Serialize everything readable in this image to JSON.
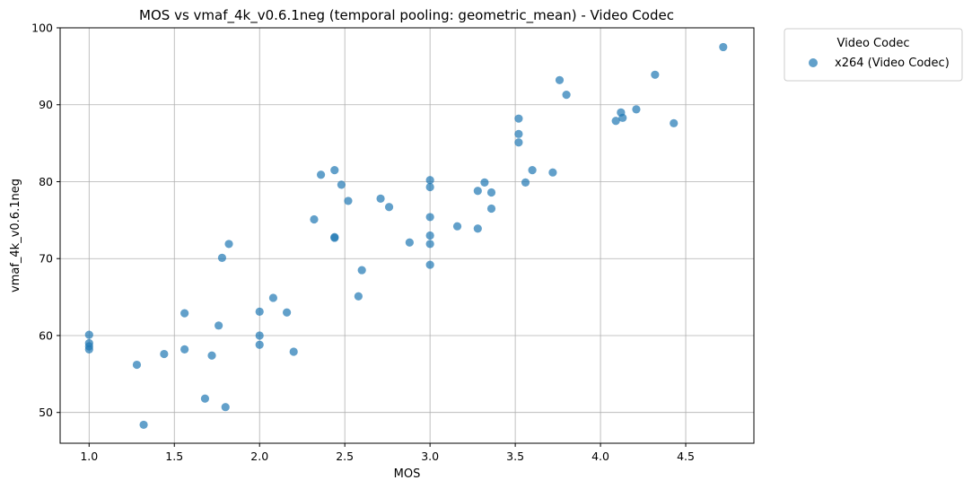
{
  "chart_data": {
    "type": "scatter",
    "title": "MOS vs vmaf_4k_v0.6.1neg (temporal pooling: geometric_mean) - Video Codec",
    "xlabel": "MOS",
    "ylabel": "vmaf_4k_v0.6.1neg",
    "xlim": [
      0.83,
      4.9
    ],
    "ylim": [
      46,
      100
    ],
    "xticks": [
      "1.0",
      "1.5",
      "2.0",
      "2.5",
      "3.0",
      "3.5",
      "4.0",
      "4.5"
    ],
    "yticks": [
      "50",
      "60",
      "70",
      "80",
      "90",
      "100"
    ],
    "grid": true,
    "legend": {
      "title": "Video Codec",
      "placement": "outside-top-right"
    },
    "series": [
      {
        "name": "x264 (Video Codec)",
        "color": "#1f77b4",
        "points": [
          [
            1.0,
            60.1
          ],
          [
            1.0,
            59.0
          ],
          [
            1.0,
            58.6
          ],
          [
            1.0,
            58.2
          ],
          [
            1.28,
            56.2
          ],
          [
            1.32,
            48.4
          ],
          [
            1.44,
            57.6
          ],
          [
            1.56,
            62.9
          ],
          [
            1.56,
            58.2
          ],
          [
            1.68,
            51.8
          ],
          [
            1.72,
            57.4
          ],
          [
            1.76,
            61.3
          ],
          [
            1.78,
            70.1
          ],
          [
            1.8,
            50.7
          ],
          [
            1.82,
            71.9
          ],
          [
            2.0,
            63.1
          ],
          [
            2.0,
            60.0
          ],
          [
            2.0,
            58.8
          ],
          [
            2.08,
            64.9
          ],
          [
            2.16,
            63.0
          ],
          [
            2.2,
            57.9
          ],
          [
            2.32,
            75.1
          ],
          [
            2.36,
            80.9
          ],
          [
            2.44,
            81.5
          ],
          [
            2.44,
            72.8
          ],
          [
            2.44,
            72.7
          ],
          [
            2.48,
            79.6
          ],
          [
            2.52,
            77.5
          ],
          [
            2.58,
            65.1
          ],
          [
            2.6,
            68.5
          ],
          [
            2.71,
            77.8
          ],
          [
            2.76,
            76.7
          ],
          [
            2.88,
            72.1
          ],
          [
            3.0,
            80.2
          ],
          [
            3.0,
            79.3
          ],
          [
            3.0,
            75.4
          ],
          [
            3.0,
            73.0
          ],
          [
            3.0,
            71.9
          ],
          [
            3.0,
            69.2
          ],
          [
            3.16,
            74.2
          ],
          [
            3.28,
            78.8
          ],
          [
            3.28,
            73.9
          ],
          [
            3.32,
            79.9
          ],
          [
            3.36,
            78.6
          ],
          [
            3.36,
            76.5
          ],
          [
            3.52,
            88.2
          ],
          [
            3.52,
            86.2
          ],
          [
            3.52,
            85.1
          ],
          [
            3.56,
            79.9
          ],
          [
            3.6,
            81.5
          ],
          [
            3.72,
            81.2
          ],
          [
            3.76,
            93.2
          ],
          [
            3.8,
            91.3
          ],
          [
            4.09,
            87.9
          ],
          [
            4.12,
            89.0
          ],
          [
            4.13,
            88.3
          ],
          [
            4.21,
            89.4
          ],
          [
            4.32,
            93.9
          ],
          [
            4.43,
            87.6
          ],
          [
            4.72,
            97.5
          ]
        ]
      }
    ]
  }
}
